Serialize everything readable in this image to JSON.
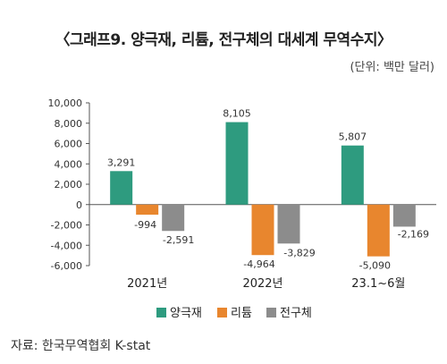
{
  "title": "〈그래프9. 양극재, 리튬, 전구체의 대세계 무역수지〉",
  "unit_note": "(단위: 백만 달러)",
  "source": "자료: 한국무역협회 K-stat",
  "chart_data": {
    "type": "bar",
    "categories": [
      "2021년",
      "2022년",
      "23.1~6월"
    ],
    "series": [
      {
        "name": "양극재",
        "values": [
          3291,
          8105,
          5807
        ],
        "labels": [
          "3,291",
          "8,105",
          "5,807"
        ],
        "color": "#2e9b7f"
      },
      {
        "name": "리튬",
        "values": [
          -994,
          -4964,
          -5090
        ],
        "labels": [
          "-994",
          "-4,964",
          "-5,090"
        ],
        "color": "#e8862e"
      },
      {
        "name": "전구체",
        "values": [
          -2591,
          -3829,
          -2169
        ],
        "labels": [
          "-2,591",
          "-3,829",
          "-2,169"
        ],
        "color": "#8c8c8c"
      }
    ],
    "ylim": [
      -6000,
      10000
    ],
    "yticks": [
      10000,
      8000,
      6000,
      4000,
      2000,
      0,
      -2000,
      -4000,
      -6000
    ],
    "ytick_labels": [
      "10,000",
      "8,000",
      "6,000",
      "4,000",
      "2,000",
      "0",
      "-2,000",
      "-4,000",
      "-6,000"
    ],
    "legend_position": "bottom",
    "grid": false
  }
}
